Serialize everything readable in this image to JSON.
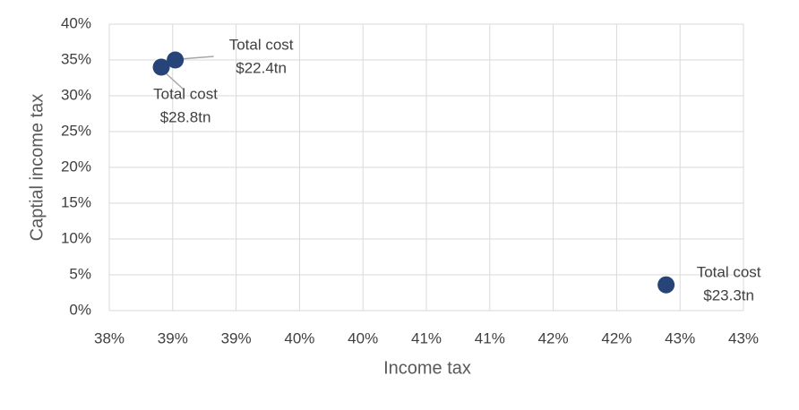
{
  "chart_data": {
    "type": "scatter",
    "x_label": "Income tax",
    "y_label": "Captial income tax",
    "x": [
      38.41,
      38.52,
      42.39
    ],
    "values": [
      34.0,
      35.0,
      3.6
    ],
    "point_labels": [
      [
        "Total cost",
        "$28.8tn"
      ],
      [
        "Total cost",
        "$22.4tn"
      ],
      [
        "Total cost",
        "$23.3tn"
      ]
    ],
    "color": "#264478",
    "xlim": [
      38,
      43
    ],
    "ylim": [
      0,
      40
    ],
    "xticks": [
      {
        "value": 38,
        "label": "38%"
      },
      {
        "value": 38.5,
        "label": "39%"
      },
      {
        "value": 39,
        "label": "39%"
      },
      {
        "value": 39.5,
        "label": "40%"
      },
      {
        "value": 40,
        "label": "40%"
      },
      {
        "value": 40.5,
        "label": "41%"
      },
      {
        "value": 41,
        "label": "41%"
      },
      {
        "value": 41.5,
        "label": "42%"
      },
      {
        "value": 42,
        "label": "42%"
      },
      {
        "value": 42.5,
        "label": "43%"
      },
      {
        "value": 43,
        "label": "43%"
      }
    ],
    "yticks": [
      {
        "value": 0,
        "label": "0%"
      },
      {
        "value": 5,
        "label": "5%"
      },
      {
        "value": 10,
        "label": "10%"
      },
      {
        "value": 15,
        "label": "15%"
      },
      {
        "value": 20,
        "label": "20%"
      },
      {
        "value": 25,
        "label": "25%"
      },
      {
        "value": 30,
        "label": "30%"
      },
      {
        "value": 35,
        "label": "35%"
      },
      {
        "value": 40,
        "label": "40%"
      }
    ],
    "grid": true
  }
}
